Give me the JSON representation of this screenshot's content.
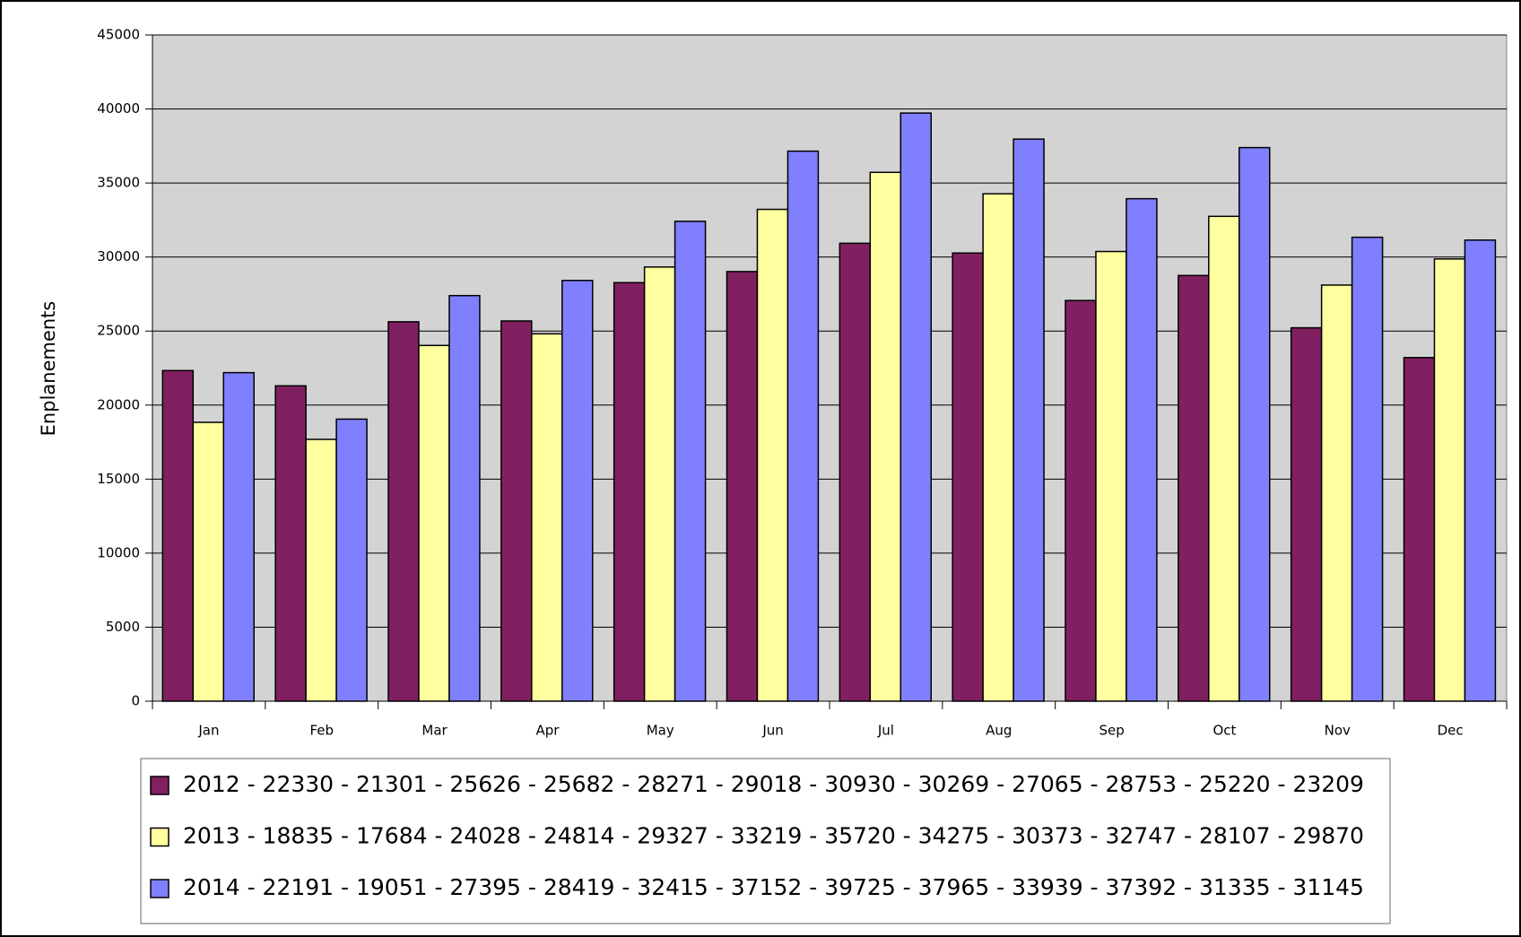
{
  "chart_data": {
    "type": "bar",
    "y_label": "Enplanements",
    "categories": [
      "Jan",
      "Feb",
      "Mar",
      "Apr",
      "May",
      "Jun",
      "Jul",
      "Aug",
      "Sep",
      "Oct",
      "Nov",
      "Dec"
    ],
    "series": [
      {
        "name": "2012 - 22330 - 21301 - 25626 - 25682 - 28271 - 29018 - 30930 - 30269 - 27065 - 28753 - 25220 - 23209",
        "color": "#802060",
        "values": [
          22330,
          21301,
          25626,
          25682,
          28271,
          29018,
          30930,
          30269,
          27065,
          28753,
          25220,
          23209
        ]
      },
      {
        "name": "2013 - 18835 - 17684 - 24028 - 24814 - 29327 - 33219 - 35720 - 34275 - 30373 - 32747 - 28107 - 29870",
        "color": "#ffffa0",
        "values": [
          18835,
          17684,
          24028,
          24814,
          29327,
          33219,
          35720,
          34275,
          30373,
          32747,
          28107,
          29870
        ]
      },
      {
        "name": "2014 - 22191 - 19051 - 27395 - 28419 - 32415 - 37152 - 39725 - 37965 - 33939 - 37392 - 31335 - 31145",
        "color": "#8080ff",
        "values": [
          22191,
          19051,
          27395,
          28419,
          32415,
          37152,
          39725,
          37965,
          33939,
          37392,
          31335,
          31145
        ]
      }
    ],
    "ylim": [
      0,
      45000
    ],
    "yticks": [
      0,
      5000,
      10000,
      15000,
      20000,
      25000,
      30000,
      35000,
      40000,
      45000
    ],
    "grid": true,
    "plot_background": "#d3d3d3"
  }
}
